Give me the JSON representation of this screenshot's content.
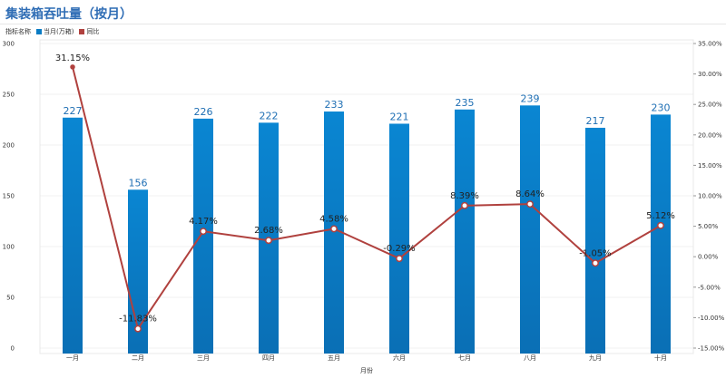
{
  "title": "集装箱吞吐量（按月）",
  "legend": {
    "prefix": "指标名称",
    "items": [
      {
        "name": "当月(万箱)",
        "color": "#0a7cc4"
      },
      {
        "name": "同比",
        "color": "#b0413e"
      }
    ]
  },
  "chart_data": {
    "type": "bar",
    "categories": [
      "一月",
      "二月",
      "三月",
      "四月",
      "五月",
      "六月",
      "七月",
      "八月",
      "九月",
      "十月"
    ],
    "series": [
      {
        "name": "当月(万箱)",
        "type": "bar",
        "axis": "left",
        "color": "#0a7cc4",
        "values": [
          227,
          156,
          226,
          222,
          233,
          221,
          235,
          239,
          217,
          230
        ],
        "labels": [
          "227",
          "156",
          "226",
          "222",
          "233",
          "221",
          "235",
          "239",
          "217",
          "230"
        ]
      },
      {
        "name": "同比",
        "type": "line",
        "axis": "right",
        "color": "#b0413e",
        "values": [
          31.15,
          -11.83,
          4.17,
          2.68,
          4.58,
          -0.29,
          8.39,
          8.64,
          -1.05,
          5.12
        ],
        "labels": [
          "31.15%",
          "-11.83%",
          "4.17%",
          "2.68%",
          "4.58%",
          "-0.29%",
          "8.39%",
          "8.64%",
          "-1.05%",
          "5.12%"
        ]
      }
    ],
    "xlabel": "月份",
    "ylim_left": [
      0,
      300
    ],
    "yticks_left": [
      "0",
      "50",
      "100",
      "150",
      "200",
      "250",
      "300"
    ],
    "ylim_right": [
      -15,
      35
    ],
    "yticks_right": [
      "-15.00%",
      "-10.00%",
      "-5.00%",
      "0.00%",
      "5.00%",
      "10.00%",
      "15.00%",
      "20.00%",
      "25.00%",
      "30.00%",
      "35.00%"
    ],
    "grid": true
  }
}
